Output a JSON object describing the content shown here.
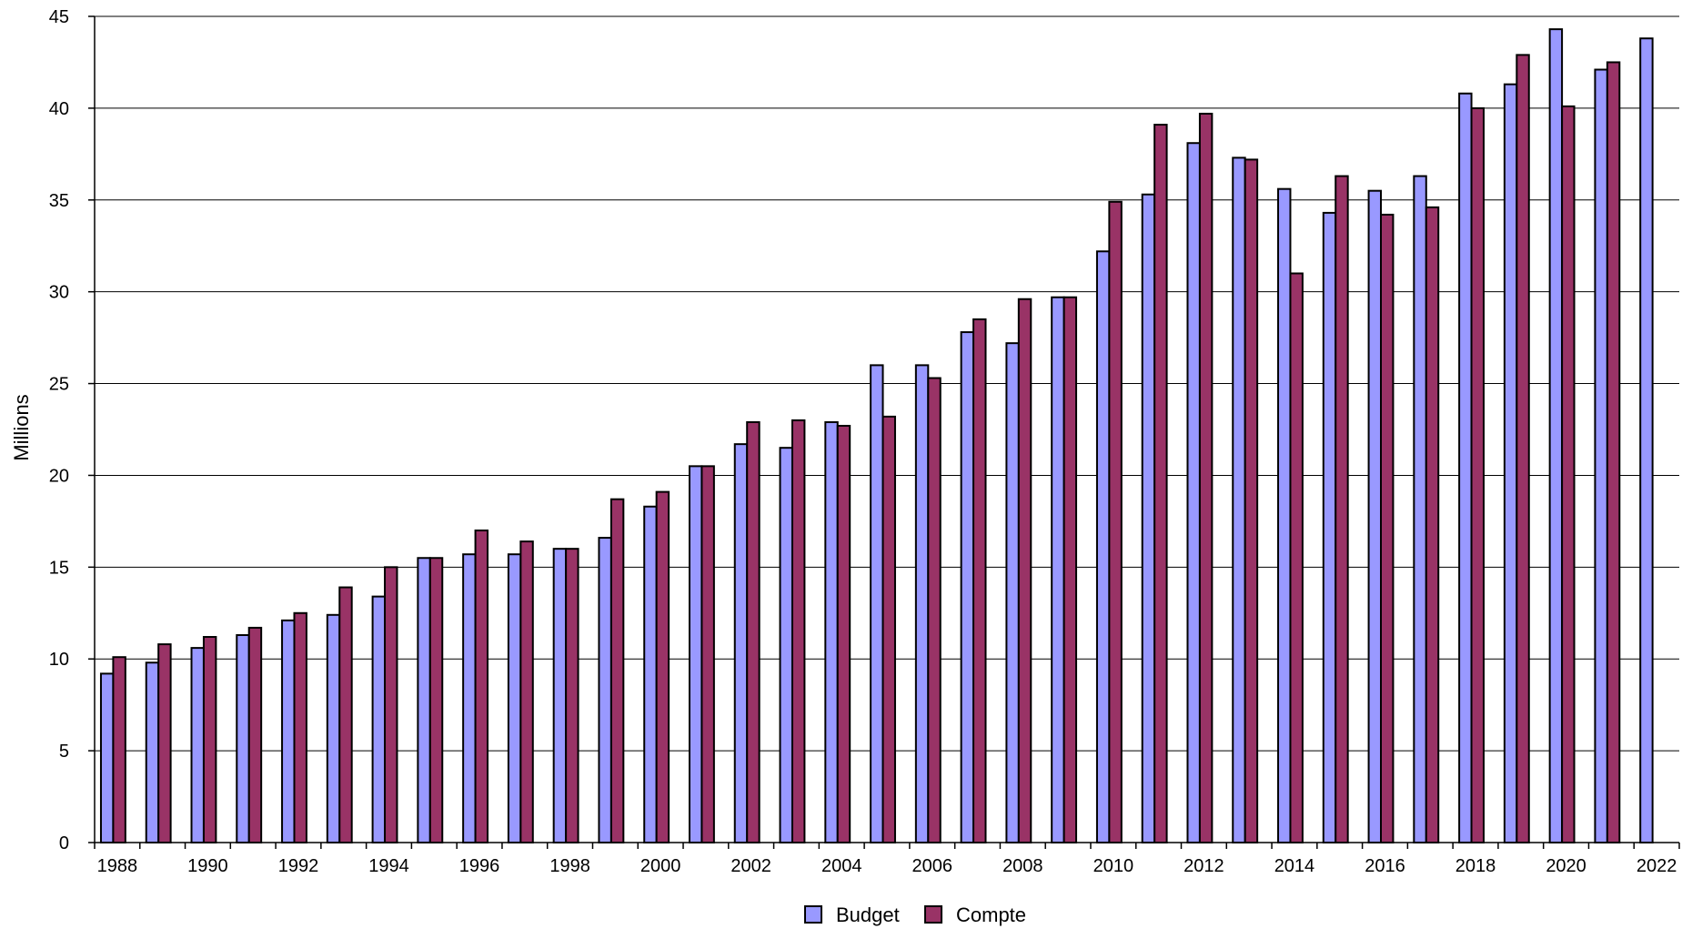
{
  "chart_data": {
    "type": "bar",
    "title": "",
    "xlabel": "",
    "ylabel": "Millions",
    "ylim": [
      0,
      45
    ],
    "yticks": [
      0,
      5,
      10,
      15,
      20,
      25,
      30,
      35,
      40,
      45
    ],
    "grid": true,
    "legend_position": "bottom-center",
    "categories": [
      "1988",
      "1989",
      "1990",
      "1991",
      "1992",
      "1993",
      "1994",
      "1995",
      "1996",
      "1997",
      "1998",
      "1999",
      "2000",
      "2001",
      "2002",
      "2003",
      "2004",
      "2005",
      "2006",
      "2007",
      "2008",
      "2009",
      "2010",
      "2011",
      "2012",
      "2013",
      "2014",
      "2015",
      "2016",
      "2017",
      "2018",
      "2019",
      "2020",
      "2021",
      "2022"
    ],
    "x_tick_labels": [
      "1988",
      "1990",
      "1992",
      "1994",
      "1996",
      "1998",
      "2000",
      "2002",
      "2004",
      "2006",
      "2008",
      "2010",
      "2012",
      "2014",
      "2016",
      "2018",
      "2020",
      "2022"
    ],
    "series": [
      {
        "name": "Budget",
        "color": "#9999ff",
        "values": [
          9.2,
          9.8,
          10.6,
          11.3,
          12.1,
          12.4,
          13.4,
          15.5,
          15.7,
          15.7,
          16.0,
          16.6,
          18.3,
          20.5,
          21.7,
          21.5,
          22.9,
          26.0,
          26.0,
          27.8,
          27.2,
          29.7,
          32.2,
          35.3,
          38.1,
          37.3,
          35.6,
          34.3,
          35.5,
          36.3,
          40.8,
          41.3,
          44.3,
          42.1,
          43.8
        ]
      },
      {
        "name": "Compte",
        "color": "#993366",
        "values": [
          10.1,
          10.8,
          11.2,
          11.7,
          12.5,
          13.9,
          15.0,
          15.5,
          17.0,
          16.4,
          16.0,
          18.7,
          19.1,
          20.5,
          22.9,
          23.0,
          22.7,
          23.2,
          25.3,
          28.5,
          29.6,
          29.7,
          34.9,
          39.1,
          39.7,
          37.2,
          31.0,
          36.3,
          34.2,
          34.6,
          40.0,
          42.9,
          40.1,
          42.5,
          null
        ]
      }
    ]
  }
}
